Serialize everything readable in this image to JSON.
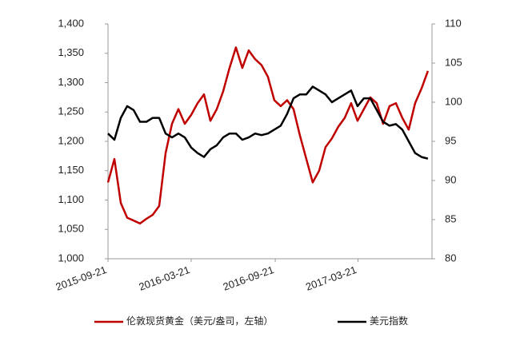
{
  "chart_data": {
    "type": "line",
    "x": [
      "2015-09-21",
      "2015-10-05",
      "2015-10-19",
      "2015-11-02",
      "2015-11-16",
      "2015-11-30",
      "2015-12-14",
      "2015-12-28",
      "2016-01-11",
      "2016-01-25",
      "2016-02-08",
      "2016-02-22",
      "2016-03-07",
      "2016-03-21",
      "2016-04-04",
      "2016-04-18",
      "2016-05-02",
      "2016-05-16",
      "2016-05-30",
      "2016-06-13",
      "2016-06-27",
      "2016-07-11",
      "2016-07-25",
      "2016-08-08",
      "2016-08-22",
      "2016-09-05",
      "2016-09-19",
      "2016-10-03",
      "2016-10-17",
      "2016-10-31",
      "2016-11-14",
      "2016-11-28",
      "2016-12-12",
      "2016-12-26",
      "2017-01-09",
      "2017-01-23",
      "2017-02-06",
      "2017-02-20",
      "2017-03-06",
      "2017-03-20",
      "2017-04-03",
      "2017-04-17",
      "2017-05-01",
      "2017-05-15",
      "2017-05-29",
      "2017-06-12",
      "2017-06-26",
      "2017-07-10",
      "2017-07-24",
      "2017-08-07",
      "2017-08-21"
    ],
    "xlim": [
      "2015-09-21",
      "2017-08-30"
    ],
    "xticks": [
      "2015-09-21",
      "2016-03-21",
      "2016-09-21",
      "2017-03-21"
    ],
    "ylim": [
      1000,
      1400
    ],
    "yticks": [
      {
        "value": 1000,
        "label": "1,000"
      },
      {
        "value": 1050,
        "label": "1,050"
      },
      {
        "value": 1100,
        "label": "1,100"
      },
      {
        "value": 1150,
        "label": "1,150"
      },
      {
        "value": 1200,
        "label": "1,200"
      },
      {
        "value": 1250,
        "label": "1,250"
      },
      {
        "value": 1300,
        "label": "1,300"
      },
      {
        "value": 1350,
        "label": "1,350"
      },
      {
        "value": 1400,
        "label": "1,400"
      }
    ],
    "y2lim": [
      80,
      110
    ],
    "y2ticks": [
      80,
      85,
      90,
      95,
      100,
      105,
      110
    ],
    "legend": "bottom",
    "series": [
      {
        "name": "伦敦现货黄金（美元/盎司，左轴）",
        "color": "#c00000",
        "values": [
          1130,
          1170,
          1095,
          1070,
          1065,
          1060,
          1068,
          1075,
          1090,
          1180,
          1230,
          1255,
          1230,
          1245,
          1265,
          1280,
          1235,
          1255,
          1285,
          1325,
          1360,
          1325,
          1355,
          1340,
          1330,
          1310,
          1270,
          1260,
          1270,
          1255,
          1210,
          1170,
          1130,
          1150,
          1190,
          1205,
          1225,
          1240,
          1265,
          1235,
          1255,
          1275,
          1265,
          1230,
          1260,
          1265,
          1240,
          1220,
          1265,
          1290,
          1320
        ]
      },
      {
        "name": "美元指数",
        "color": "#000000",
        "axis": "y2",
        "values": [
          96,
          95.2,
          98,
          99.5,
          99,
          97.5,
          97.5,
          98,
          98,
          96,
          95.5,
          96,
          95.5,
          94.2,
          93.5,
          93,
          94,
          94.5,
          95.5,
          96,
          96,
          95.2,
          95.5,
          96,
          95.8,
          96,
          96.5,
          97,
          98.5,
          100.5,
          101,
          101,
          102,
          101.5,
          101,
          100,
          100.5,
          101,
          101.5,
          99.5,
          100.5,
          100.5,
          99,
          97.5,
          97,
          97.2,
          96.5,
          95,
          93.5,
          93,
          92.8
        ]
      }
    ]
  }
}
